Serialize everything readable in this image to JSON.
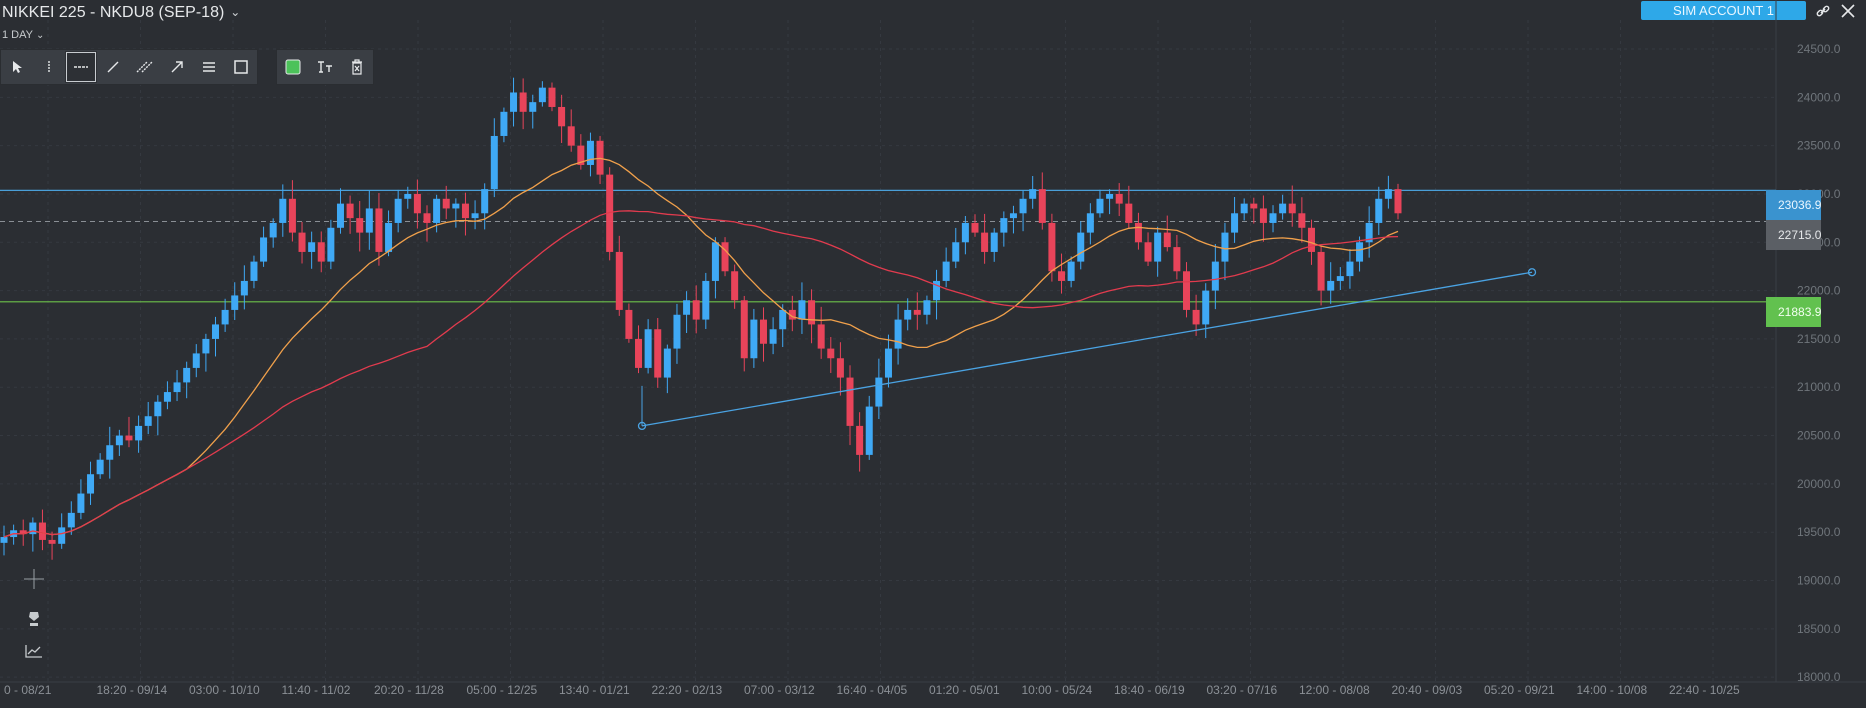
{
  "header": {
    "symbol_title": "NIKKEI 225 - NKDU8 (SEP-18)",
    "timeframe": "1 DAY",
    "account_button": "SIM ACCOUNT 1"
  },
  "icons": {
    "link": "link-icon",
    "close": "close-icon",
    "cursor": "cursor-icon",
    "vertical_line": "vertical-line-icon",
    "horizontal_line": "horizontal-line-icon",
    "trend_line": "trend-line-icon",
    "parallel_lines": "parallel-channel-icon",
    "arrow": "arrow-icon",
    "fib": "fibonacci-icon",
    "rectangle": "rectangle-icon",
    "color": "color-swatch-icon",
    "text": "text-tool-icon",
    "delete": "delete-icon",
    "crosshair": "crosshair-icon",
    "pen": "pen-icon",
    "indicator": "indicator-icon"
  },
  "colors": {
    "up": "#3fa9f5",
    "down": "#e8445a",
    "ma_fast": "#f0a04b",
    "ma_slow": "#e23b4e",
    "resistance": "#4a9fd8",
    "support": "#6cc04a",
    "trendline": "#4aa3e3",
    "background": "#2b2e33"
  },
  "price_labels": {
    "resistance": "23036.9",
    "last": "22715.0",
    "support": "21883.9"
  },
  "chart_data": {
    "type": "candlestick",
    "y_ticks": [
      "24500.0",
      "24000.0",
      "23500.0",
      "23000.0",
      "22500.0",
      "22000.0",
      "21500.0",
      "21000.0",
      "20500.0",
      "20000.0",
      "19500.0",
      "19000.0",
      "18500.0",
      "18000.0"
    ],
    "x_ticks": [
      "0 - 08/21",
      "18:20 - 09/14",
      "03:00 - 10/10",
      "11:40 - 11/02",
      "20:20 - 11/28",
      "05:00 - 12/25",
      "13:40 - 01/21",
      "22:20 - 02/13",
      "07:00 - 03/12",
      "16:40 - 04/05",
      "01:20 - 05/01",
      "10:00 - 05/24",
      "18:40 - 06/19",
      "03:20 - 07/16",
      "12:00 - 08/08",
      "20:40 - 09/03",
      "05:20 - 09/21",
      "14:00 - 10/08",
      "22:40 - 10/25"
    ],
    "ylim": [
      17950,
      24800
    ],
    "horizontal_levels": {
      "resistance": 23036.9,
      "last": 22715.0,
      "support": 21883.9
    },
    "closes": [
      19450,
      19520,
      19480,
      19600,
      19420,
      19380,
      19550,
      19700,
      19900,
      20100,
      20250,
      20400,
      20500,
      20450,
      20600,
      20700,
      20850,
      20950,
      21050,
      21200,
      21350,
      21500,
      21650,
      21800,
      21950,
      22100,
      22300,
      22550,
      22700,
      22950,
      22600,
      22400,
      22500,
      22300,
      22650,
      22900,
      22750,
      22600,
      22850,
      22400,
      22700,
      22950,
      23000,
      22800,
      22700,
      22950,
      22850,
      22900,
      22750,
      22800,
      23050,
      23600,
      23850,
      24050,
      23850,
      23950,
      24100,
      23900,
      23700,
      23500,
      23300,
      23550,
      23200,
      22400,
      21800,
      21500,
      21200,
      21600,
      21100,
      21400,
      21750,
      21900,
      21700,
      22100,
      22500,
      22200,
      21900,
      21300,
      21700,
      21450,
      21600,
      21800,
      21700,
      21900,
      21650,
      21400,
      21300,
      21100,
      20600,
      20300,
      20800,
      21100,
      21400,
      21700,
      21800,
      21750,
      21900,
      22100,
      22300,
      22500,
      22700,
      22600,
      22400,
      22600,
      22750,
      22800,
      22950,
      23050,
      22700,
      22200,
      22100,
      22300,
      22600,
      22800,
      22950,
      23000,
      22900,
      22700,
      22500,
      22300,
      22600,
      22450,
      22200,
      21800,
      21650,
      22000,
      22300,
      22600,
      22800,
      22900,
      22850,
      22700,
      22800,
      22900,
      22800,
      22650,
      22400,
      22000,
      22100,
      22150,
      22300,
      22500,
      22700,
      22950,
      23050,
      22800
    ]
  },
  "chart_lines": {
    "ma_fast": "orange moving average",
    "ma_slow": "red moving average"
  }
}
